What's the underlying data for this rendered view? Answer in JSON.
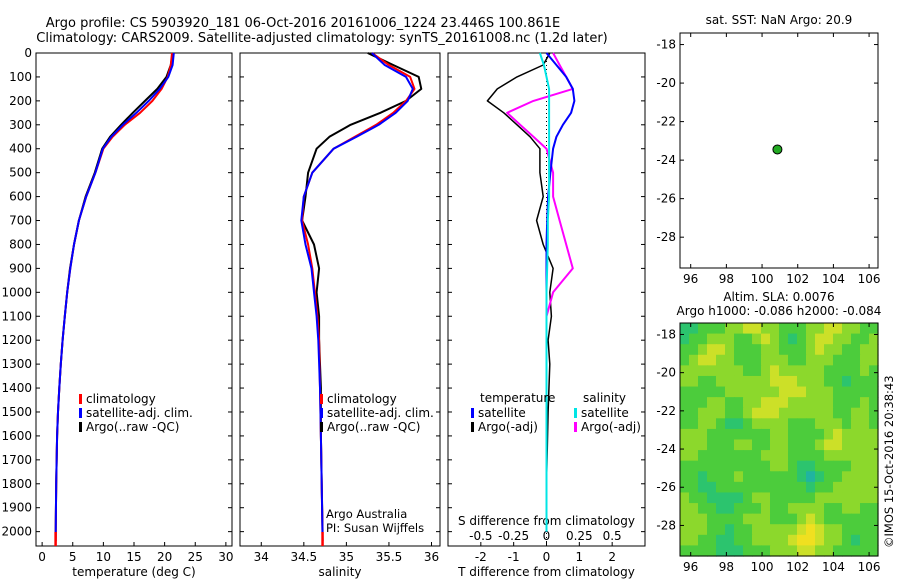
{
  "header": {
    "title_line1": "Argo profile: CS 5903920_181 06-Oct-2016 20161006_1224 23.446S 100.861E",
    "title_line2": "Climatology: CARS2009. Satellite-adjusted climatology: synTS_20161008.nc (1.2d later)"
  },
  "colors": {
    "climatology": "#ff0000",
    "satellite": "#0000ff",
    "argo": "#000000",
    "salinity_satellite": "#00e5e5",
    "salinity_argo": "#ff00ff",
    "marker": "#22aa22"
  },
  "credits": {
    "agency": "Argo Australia",
    "pi": "PI: Susan Wijffels",
    "stamp": "©IMOS 15-Oct-2016 20:38:43"
  },
  "chart_data": [
    {
      "id": "temperature",
      "type": "line",
      "xlabel": "temperature (deg C)",
      "xlim": [
        -1,
        31
      ],
      "xticks": [
        0,
        5,
        10,
        15,
        20,
        25,
        30
      ],
      "ylim": [
        0,
        2060
      ],
      "yticks": [
        0,
        100,
        200,
        300,
        400,
        500,
        600,
        700,
        800,
        900,
        1000,
        1100,
        1200,
        1300,
        1400,
        1500,
        1600,
        1700,
        1800,
        1900,
        2000
      ],
      "legend": [
        "climatology",
        "satellite-adj. clim.",
        "Argo(..raw -QC)"
      ],
      "series": [
        {
          "name": "climatology",
          "x": [
            21.2,
            21.0,
            20.5,
            19.5,
            18.0,
            16.0,
            13.5,
            11.5,
            10.0,
            8.7,
            7.2,
            6.0,
            5.2,
            4.6,
            4.1,
            3.7,
            3.35,
            3.05,
            2.8,
            2.6,
            2.45,
            2.3,
            2.2
          ],
          "y": [
            0,
            50,
            100,
            150,
            200,
            250,
            300,
            350,
            400,
            500,
            600,
            700,
            800,
            900,
            1000,
            1100,
            1200,
            1300,
            1400,
            1500,
            1600,
            1800,
            2040
          ]
        },
        {
          "name": "satellite-adj. clim.",
          "x": [
            21.5,
            21.3,
            20.6,
            19.2,
            17.4,
            15.4,
            13.2,
            11.3,
            9.9,
            8.7,
            7.2,
            6.0,
            5.2,
            4.6,
            4.1,
            3.7,
            3.35,
            3.05,
            2.8,
            2.6,
            2.45,
            2.3,
            2.2
          ],
          "y": [
            0,
            50,
            100,
            150,
            200,
            250,
            300,
            350,
            400,
            500,
            600,
            700,
            800,
            900,
            1000,
            1100,
            1200,
            1300,
            1400,
            1500,
            1600,
            1800,
            2040
          ]
        },
        {
          "name": "Argo(..raw -QC)",
          "x": [
            21.3,
            21.0,
            20.3,
            18.8,
            16.8,
            14.8,
            12.9,
            11.1,
            9.8,
            8.6,
            7.1,
            6.0,
            5.2,
            4.55,
            4.1,
            3.7,
            3.35,
            3.05,
            2.8,
            2.6,
            2.45,
            2.3,
            2.2
          ],
          "y": [
            0,
            50,
            100,
            150,
            200,
            250,
            300,
            350,
            400,
            500,
            600,
            700,
            800,
            900,
            1000,
            1100,
            1200,
            1300,
            1400,
            1500,
            1600,
            1800,
            2040
          ]
        }
      ]
    },
    {
      "id": "salinity",
      "type": "line",
      "xlabel": "salinity",
      "xlim": [
        33.75,
        36.1
      ],
      "xticks": [
        34,
        34.5,
        35,
        35.5,
        36
      ],
      "xticklabels": [
        "34",
        "34.5",
        "35",
        "35.5",
        "36"
      ],
      "ylim": [
        0,
        2060
      ],
      "legend": [
        "climatology",
        "satellite-adj. clim.",
        "Argo(..raw -QC)"
      ],
      "series": [
        {
          "name": "climatology",
          "x": [
            35.3,
            35.5,
            35.75,
            35.8,
            35.7,
            35.55,
            35.35,
            35.1,
            34.85,
            34.6,
            34.5,
            34.48,
            34.55,
            34.6,
            34.63,
            34.66,
            34.68,
            34.69,
            34.7,
            34.71,
            34.72
          ],
          "y": [
            0,
            50,
            100,
            150,
            200,
            250,
            300,
            350,
            400,
            500,
            600,
            700,
            800,
            900,
            1000,
            1100,
            1200,
            1400,
            1600,
            1800,
            2040
          ]
        },
        {
          "name": "satellite-adj. clim.",
          "x": [
            35.3,
            35.45,
            35.7,
            35.78,
            35.72,
            35.58,
            35.38,
            35.12,
            34.85,
            34.6,
            34.5,
            34.47,
            34.52,
            34.59,
            34.62,
            34.65,
            34.67,
            34.69,
            34.7,
            34.71,
            34.72
          ],
          "y": [
            0,
            50,
            100,
            150,
            200,
            250,
            300,
            350,
            400,
            500,
            600,
            700,
            800,
            900,
            1000,
            1100,
            1200,
            1400,
            1600,
            1800,
            2040
          ]
        },
        {
          "name": "Argo(..raw -QC)",
          "x": [
            35.25,
            35.55,
            35.85,
            35.88,
            35.7,
            35.4,
            35.05,
            34.8,
            34.65,
            34.55,
            34.52,
            34.48,
            34.62,
            34.68,
            34.65,
            34.68,
            34.68,
            34.7,
            34.7,
            34.71,
            34.72
          ],
          "y": [
            0,
            50,
            100,
            150,
            200,
            250,
            300,
            350,
            400,
            500,
            600,
            700,
            800,
            900,
            1000,
            1100,
            1200,
            1400,
            1600,
            1800,
            2000
          ]
        }
      ]
    },
    {
      "id": "difference",
      "type": "line",
      "xlabel": "T difference from climatology",
      "top_xlabel": "S difference from climatology",
      "xlim": [
        -3,
        3
      ],
      "xticks": [
        -2,
        -1,
        0,
        1,
        2
      ],
      "s_ticks": [
        -0.5,
        -0.25,
        0,
        0.25,
        0.5
      ],
      "s_ticklabels": [
        "-0.5",
        "-0.25",
        "0",
        "0.25",
        "0.5"
      ],
      "ylim": [
        0,
        2060
      ],
      "legend_temperature_title": "temperature",
      "legend_salinity_title": "salinity",
      "legend_items": [
        "satellite",
        "Argo(-adj)",
        "satellite",
        "Argo(-adj)"
      ],
      "series": [
        {
          "name": "temperature satellite",
          "x": [
            0.0,
            0.3,
            0.6,
            0.8,
            0.85,
            0.75,
            0.5,
            0.3,
            0.2,
            0.12,
            0.05,
            0.02,
            0.0,
            0.0,
            0.0,
            0.0,
            0.0
          ],
          "y": [
            0,
            50,
            100,
            150,
            200,
            250,
            300,
            350,
            400,
            500,
            600,
            700,
            800,
            1000,
            1200,
            1600,
            2000
          ]
        },
        {
          "name": "temperature Argo(-adj)",
          "x": [
            0.1,
            -0.1,
            -0.9,
            -1.5,
            -1.8,
            -1.3,
            -0.9,
            -0.5,
            -0.2,
            -0.2,
            -0.1,
            -0.3,
            -0.1,
            0.2,
            0.1,
            0.15,
            0.05,
            0.1,
            0.05,
            0.0
          ],
          "y": [
            0,
            50,
            100,
            150,
            200,
            250,
            300,
            350,
            400,
            500,
            600,
            700,
            800,
            900,
            1000,
            1100,
            1200,
            1300,
            1500,
            1800
          ]
        },
        {
          "name": "salinity satellite",
          "x": [
            -0.05,
            -0.02,
            0.0,
            0.02,
            0.02,
            0.02,
            0.02,
            0.02,
            0.02,
            0.01,
            0.01,
            0.0,
            0.0,
            0.0,
            0.0,
            0.0
          ],
          "y": [
            0,
            50,
            100,
            150,
            200,
            300,
            400,
            500,
            600,
            700,
            800,
            1000,
            1200,
            1500,
            1800,
            2000
          ]
        },
        {
          "name": "salinity Argo(-adj)",
          "x": [
            0.05,
            0.1,
            0.15,
            0.2,
            -0.1,
            -0.3,
            -0.2,
            -0.1,
            0.0,
            0.05,
            0.05,
            0.1,
            0.2,
            0.05,
            0.0,
            0.0,
            0.0
          ],
          "y": [
            0,
            50,
            100,
            150,
            200,
            250,
            300,
            350,
            400,
            500,
            600,
            700,
            900,
            1000,
            1100,
            1200,
            1400
          ]
        }
      ]
    },
    {
      "id": "position",
      "type": "scatter",
      "title": "sat. SST: NaN Argo: 20.9",
      "xlim": [
        95.4,
        106.5
      ],
      "ylim": [
        -29.6,
        -17.4
      ],
      "xticks": [
        96,
        98,
        100,
        102,
        104,
        106
      ],
      "yticks": [
        -18,
        -20,
        -22,
        -24,
        -26,
        -28
      ],
      "points": [
        {
          "x": 100.861,
          "y": -23.446
        }
      ]
    },
    {
      "id": "sla",
      "type": "heatmap",
      "title_line1": "Altim. SLA: 0.0076",
      "title_line2": "Argo h1000: -0.086 h2000: -0.084",
      "xlim": [
        95.4,
        106.5
      ],
      "ylim": [
        -29.6,
        -17.4
      ],
      "xticks": [
        96,
        98,
        100,
        102,
        104,
        106
      ],
      "yticks": [
        -18,
        -20,
        -22,
        -24,
        -26,
        -28
      ],
      "palette": [
        "#20b4a0",
        "#2cc46e",
        "#4ccc3c",
        "#8cd82c",
        "#cce028",
        "#f0e020"
      ],
      "grid": [
        [
          1,
          1,
          2,
          2,
          2,
          3,
          3,
          4,
          4,
          3,
          3,
          2,
          2,
          2,
          3,
          3,
          4,
          4,
          3,
          3,
          2,
          2
        ],
        [
          1,
          2,
          2,
          3,
          3,
          3,
          2,
          2,
          3,
          4,
          3,
          2,
          1,
          2,
          3,
          4,
          4,
          3,
          3,
          2,
          2,
          3
        ],
        [
          2,
          2,
          3,
          4,
          4,
          3,
          2,
          2,
          2,
          3,
          3,
          2,
          2,
          2,
          3,
          4,
          3,
          3,
          2,
          2,
          3,
          3
        ],
        [
          2,
          3,
          4,
          4,
          3,
          3,
          2,
          2,
          2,
          3,
          3,
          3,
          2,
          2,
          3,
          3,
          3,
          2,
          2,
          2,
          3,
          3
        ],
        [
          3,
          3,
          3,
          3,
          3,
          3,
          3,
          2,
          2,
          3,
          4,
          3,
          3,
          3,
          3,
          3,
          2,
          2,
          2,
          2,
          3,
          2
        ],
        [
          3,
          3,
          2,
          2,
          3,
          3,
          3,
          3,
          3,
          3,
          4,
          4,
          4,
          3,
          3,
          3,
          2,
          2,
          1,
          2,
          2,
          2
        ],
        [
          2,
          2,
          2,
          2,
          2,
          3,
          3,
          3,
          3,
          3,
          3,
          4,
          4,
          4,
          3,
          3,
          3,
          2,
          2,
          2,
          2,
          2
        ],
        [
          2,
          2,
          2,
          3,
          3,
          2,
          2,
          3,
          3,
          4,
          4,
          4,
          3,
          3,
          3,
          3,
          3,
          2,
          2,
          2,
          3,
          2
        ],
        [
          2,
          2,
          3,
          3,
          3,
          2,
          2,
          3,
          4,
          4,
          4,
          3,
          3,
          3,
          3,
          3,
          3,
          2,
          2,
          3,
          3,
          2
        ],
        [
          2,
          2,
          3,
          3,
          2,
          1,
          1,
          2,
          3,
          3,
          3,
          3,
          2,
          2,
          2,
          3,
          3,
          3,
          2,
          3,
          3,
          2
        ],
        [
          3,
          3,
          3,
          2,
          2,
          2,
          2,
          2,
          2,
          2,
          3,
          3,
          2,
          2,
          2,
          2,
          3,
          4,
          3,
          3,
          3,
          3
        ],
        [
          3,
          3,
          3,
          2,
          2,
          2,
          3,
          3,
          2,
          2,
          3,
          3,
          2,
          2,
          2,
          3,
          4,
          4,
          3,
          3,
          3,
          3
        ],
        [
          3,
          3,
          2,
          2,
          2,
          2,
          2,
          2,
          2,
          3,
          3,
          3,
          2,
          2,
          2,
          2,
          3,
          3,
          3,
          3,
          3,
          3
        ],
        [
          2,
          2,
          2,
          2,
          2,
          2,
          2,
          2,
          2,
          2,
          3,
          3,
          2,
          1,
          1,
          2,
          2,
          2,
          2,
          3,
          3,
          3
        ],
        [
          2,
          2,
          1,
          2,
          2,
          2,
          3,
          2,
          2,
          2,
          2,
          2,
          2,
          1,
          0,
          1,
          2,
          2,
          3,
          3,
          3,
          3
        ],
        [
          2,
          2,
          1,
          1,
          2,
          2,
          2,
          2,
          2,
          2,
          2,
          2,
          2,
          2,
          1,
          2,
          2,
          3,
          3,
          3,
          3,
          3
        ],
        [
          3,
          2,
          2,
          1,
          1,
          1,
          1,
          2,
          3,
          3,
          2,
          2,
          2,
          2,
          2,
          3,
          3,
          3,
          3,
          3,
          3,
          3
        ],
        [
          3,
          3,
          2,
          2,
          1,
          1,
          2,
          2,
          2,
          3,
          2,
          2,
          3,
          3,
          3,
          3,
          2,
          2,
          3,
          3,
          2,
          2
        ],
        [
          3,
          3,
          3,
          2,
          2,
          2,
          2,
          3,
          3,
          3,
          2,
          2,
          2,
          3,
          4,
          3,
          2,
          2,
          2,
          2,
          2,
          2
        ],
        [
          3,
          3,
          3,
          2,
          2,
          1,
          2,
          2,
          3,
          3,
          3,
          3,
          3,
          4,
          5,
          4,
          3,
          3,
          2,
          2,
          2,
          2
        ],
        [
          3,
          3,
          2,
          2,
          1,
          1,
          2,
          2,
          3,
          3,
          3,
          3,
          4,
          5,
          5,
          4,
          3,
          3,
          2,
          1,
          2,
          2
        ],
        [
          2,
          2,
          2,
          2,
          1,
          1,
          1,
          2,
          2,
          2,
          3,
          3,
          3,
          4,
          4,
          3,
          3,
          2,
          2,
          2,
          2,
          2
        ]
      ]
    }
  ]
}
